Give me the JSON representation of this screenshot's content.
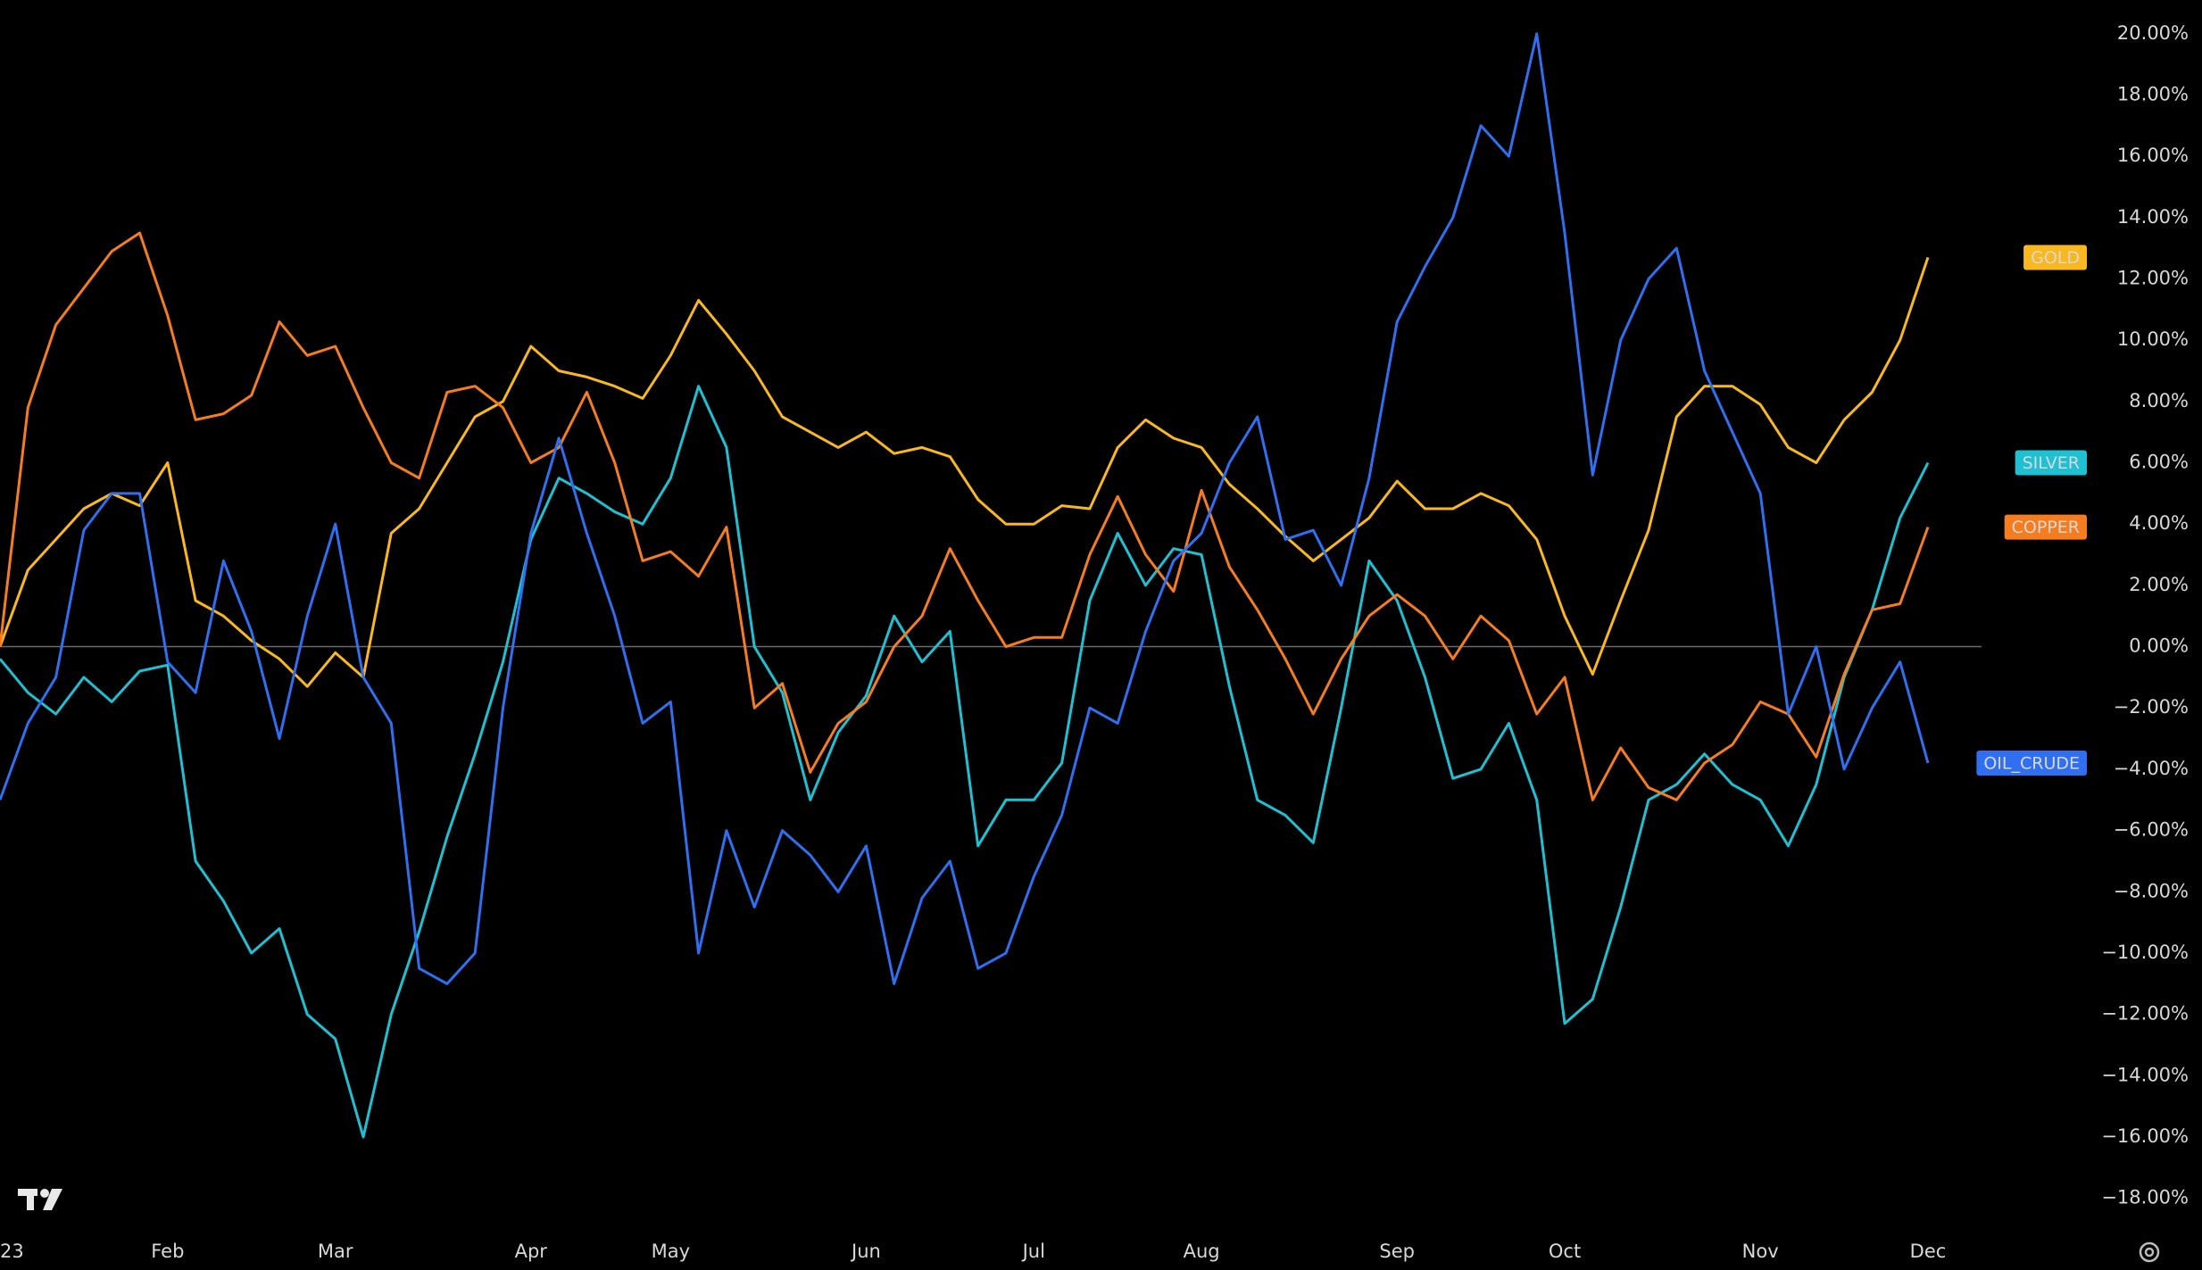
{
  "chart_data": {
    "type": "line",
    "categories": [
      "23",
      null,
      null,
      null,
      null,
      null,
      "Feb",
      null,
      null,
      null,
      null,
      null,
      "Mar",
      null,
      null,
      null,
      null,
      null,
      null,
      "Apr",
      null,
      null,
      null,
      null,
      "May",
      null,
      null,
      null,
      null,
      null,
      null,
      "Jun",
      null,
      null,
      null,
      null,
      null,
      "Jul",
      null,
      null,
      null,
      null,
      null,
      "Aug",
      null,
      null,
      null,
      null,
      null,
      null,
      "Sep",
      null,
      null,
      null,
      null,
      null,
      "Oct",
      null,
      null,
      null,
      null,
      null,
      null,
      "Nov",
      null,
      null,
      null,
      null,
      null,
      "Dec"
    ],
    "series": [
      {
        "name": "GOLD",
        "color": "#f9b81e",
        "values": [
          0.0,
          2.5,
          3.5,
          4.5,
          5.0,
          4.6,
          6.0,
          1.5,
          1.0,
          0.2,
          -0.4,
          -1.3,
          -0.2,
          -1.0,
          3.7,
          4.5,
          6.0,
          7.5,
          8.0,
          9.8,
          9.0,
          8.8,
          8.5,
          8.1,
          9.5,
          11.3,
          10.2,
          9.0,
          7.5,
          7.0,
          6.5,
          7.0,
          6.3,
          6.5,
          6.2,
          4.8,
          4.0,
          4.0,
          4.6,
          4.5,
          6.5,
          7.4,
          6.8,
          6.5,
          5.3,
          4.5,
          3.6,
          2.8,
          3.5,
          4.2,
          5.4,
          4.5,
          4.5,
          5.0,
          4.6,
          3.5,
          1.0,
          -0.9,
          1.5,
          3.8,
          7.5,
          8.5,
          8.5,
          7.9,
          6.5,
          6.0,
          7.4,
          8.3,
          10.0,
          12.7
        ]
      },
      {
        "name": "SILVER",
        "color": "#1ec0d1",
        "values": [
          -0.4,
          -1.5,
          -2.2,
          -1.0,
          -1.8,
          -0.8,
          -0.6,
          -7.0,
          -8.3,
          -10.0,
          -9.2,
          -12.0,
          -12.8,
          -16.0,
          -12.0,
          -9.3,
          -6.2,
          -3.5,
          -0.5,
          3.5,
          5.5,
          5.0,
          4.4,
          4.0,
          5.5,
          8.5,
          6.5,
          0.0,
          -1.5,
          -5.0,
          -2.8,
          -1.6,
          1.0,
          -0.5,
          0.5,
          -6.5,
          -5.0,
          -5.0,
          -3.8,
          1.5,
          3.7,
          2.0,
          3.2,
          3.0,
          -1.3,
          -5.0,
          -5.5,
          -6.4,
          -2.0,
          2.8,
          1.5,
          -1.0,
          -4.3,
          -4.0,
          -2.5,
          -5.0,
          -12.3,
          -11.5,
          -8.5,
          -5.0,
          -4.5,
          -3.5,
          -4.5,
          -5.0,
          -6.5,
          -4.5,
          -1.0,
          1.2,
          4.2,
          6.0
        ]
      },
      {
        "name": "COPPER",
        "color": "#f57d1f",
        "values": [
          0.0,
          7.8,
          10.5,
          11.7,
          12.9,
          13.5,
          10.8,
          7.4,
          7.6,
          8.2,
          10.6,
          9.5,
          9.8,
          7.8,
          6.0,
          5.5,
          8.3,
          8.5,
          7.8,
          6.0,
          6.5,
          8.3,
          6.0,
          2.8,
          3.1,
          2.3,
          3.9,
          -2.0,
          -1.2,
          -4.1,
          -2.5,
          -1.8,
          0.0,
          1.0,
          3.2,
          1.5,
          0.0,
          0.3,
          0.3,
          3.0,
          4.9,
          3.0,
          1.8,
          5.1,
          2.6,
          1.2,
          -0.4,
          -2.2,
          -0.4,
          1.0,
          1.7,
          1.0,
          -0.4,
          1.0,
          0.2,
          -2.2,
          -1.0,
          -5.0,
          -3.3,
          -4.6,
          -5.0,
          -3.8,
          -3.2,
          -1.8,
          -2.2,
          -3.6,
          -0.9,
          1.2,
          1.4,
          3.9
        ]
      },
      {
        "name": "OIL_CRUDE",
        "color": "#2f6ff0",
        "label_color": "#ffffff",
        "values": [
          -5.0,
          -2.5,
          -1.0,
          3.8,
          5.0,
          5.0,
          -0.5,
          -1.5,
          2.8,
          0.5,
          -3.0,
          1.0,
          4.0,
          -1.0,
          -2.5,
          -10.5,
          -11.0,
          -10.0,
          -2.0,
          3.7,
          6.8,
          3.7,
          1.0,
          -2.5,
          -1.8,
          -10.0,
          -6.0,
          -8.5,
          -6.0,
          -6.8,
          -8.0,
          -6.5,
          -11.0,
          -8.2,
          -7.0,
          -10.5,
          -10.0,
          -7.5,
          -5.5,
          -2.0,
          -2.5,
          0.5,
          2.8,
          3.7,
          6.0,
          7.5,
          3.5,
          3.8,
          2.0,
          5.5,
          10.6,
          12.4,
          14.0,
          17.0,
          16.0,
          20.0,
          13.5,
          5.6,
          10.0,
          12.0,
          13.0,
          9.0,
          7.0,
          5.0,
          -2.2,
          0.0,
          -4.0,
          -2.0,
          -0.5,
          -3.8
        ]
      }
    ],
    "ylim": [
      -19,
      21.1
    ],
    "yticks": [
      {
        "value": 20,
        "label": "20.00%"
      },
      {
        "value": 18,
        "label": "18.00%"
      },
      {
        "value": 16,
        "label": "16.00%"
      },
      {
        "value": 14,
        "label": "14.00%"
      },
      {
        "value": 12,
        "label": "12.00%"
      },
      {
        "value": 10,
        "label": "10.00%"
      },
      {
        "value": 8,
        "label": "8.00%"
      },
      {
        "value": 6,
        "label": "6.00%"
      },
      {
        "value": 4,
        "label": "4.00%"
      },
      {
        "value": 2,
        "label": "2.00%"
      },
      {
        "value": 0,
        "label": "0.00%"
      },
      {
        "value": -2,
        "label": "−2.00%"
      },
      {
        "value": -4,
        "label": "−4.00%"
      },
      {
        "value": -6,
        "label": "−6.00%"
      },
      {
        "value": -8,
        "label": "−8.00%"
      },
      {
        "value": -10,
        "label": "−10.00%"
      },
      {
        "value": -12,
        "label": "−12.00%"
      },
      {
        "value": -14,
        "label": "−14.00%"
      },
      {
        "value": -16,
        "label": "−16.00%"
      },
      {
        "value": -18,
        "label": "−18.00%"
      }
    ],
    "zero_line": true,
    "grid": false,
    "background": "#000000"
  }
}
